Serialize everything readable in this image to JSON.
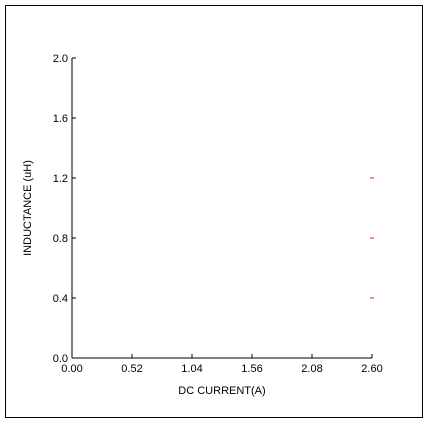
{
  "chart_data": {
    "type": "scatter",
    "title": "",
    "xlabel": "DC CURRENT(A)",
    "ylabel": "INDUCTANCE (uH)",
    "xlim": [
      0,
      2.6
    ],
    "ylim": [
      0,
      2.0
    ],
    "x_ticks": [
      "0.00",
      "0.52",
      "1.04",
      "1.56",
      "2.08",
      "2.60"
    ],
    "y_ticks": [
      "0.0",
      "0.4",
      "0.8",
      "1.2",
      "1.6",
      "2.0"
    ],
    "grid": false,
    "series": [
      {
        "color": "#cc3300",
        "points": [
          {
            "x": 2.6,
            "y": 0.4
          },
          {
            "x": 2.6,
            "y": 0.8
          },
          {
            "x": 2.6,
            "y": 1.2
          }
        ]
      }
    ]
  }
}
